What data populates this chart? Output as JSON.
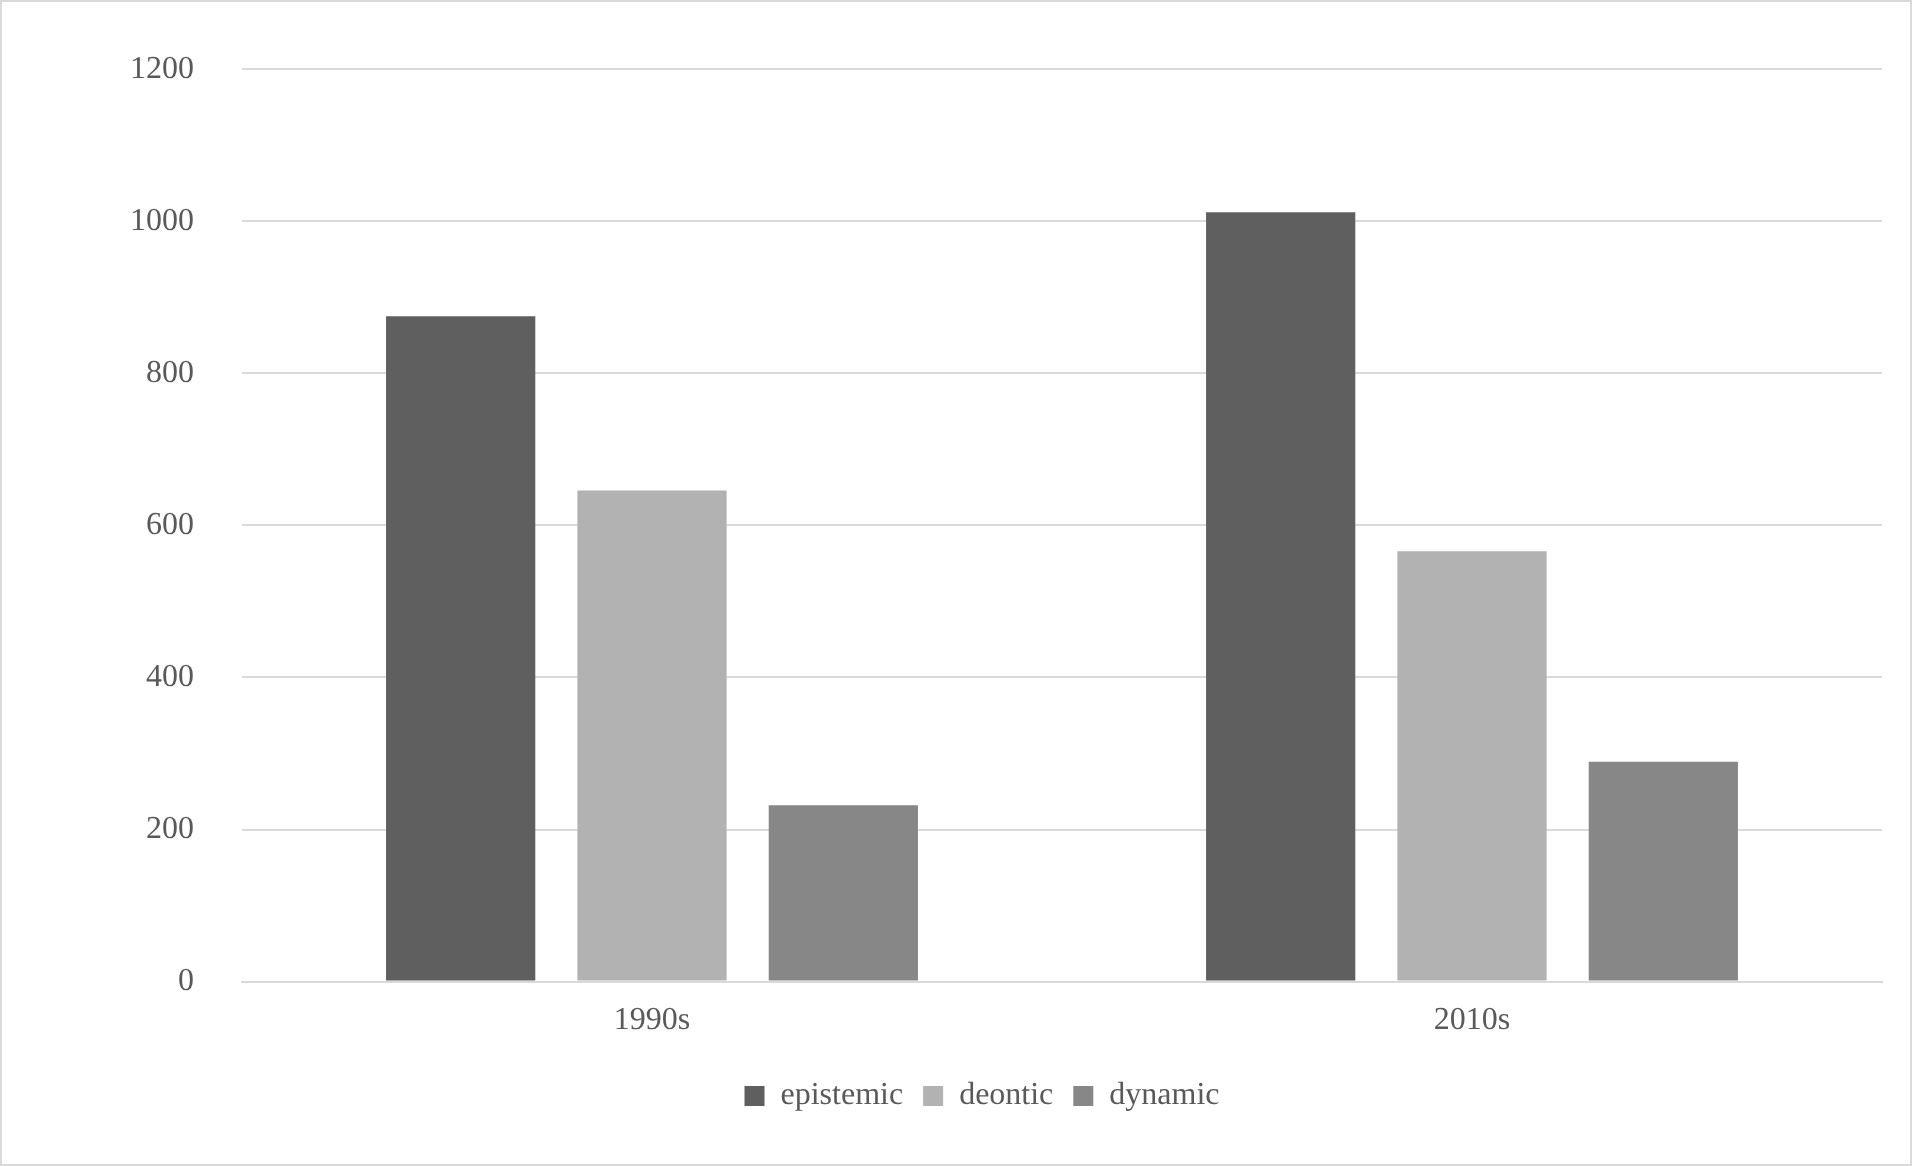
{
  "chart_data": {
    "type": "bar",
    "categories": [
      "1990s",
      "2010s"
    ],
    "series": [
      {
        "name": "epistemic",
        "color": "#5f5f5f",
        "values": [
          875,
          1012
        ]
      },
      {
        "name": "deontic",
        "color": "#b2b2b2",
        "values": [
          646,
          566
        ]
      },
      {
        "name": "dynamic",
        "color": "#878787",
        "values": [
          232,
          289
        ]
      }
    ],
    "ylim": [
      0,
      1200
    ],
    "yticks": [
      0,
      200,
      400,
      600,
      800,
      1000,
      1200
    ],
    "grid": "y",
    "legend": "bottom"
  }
}
